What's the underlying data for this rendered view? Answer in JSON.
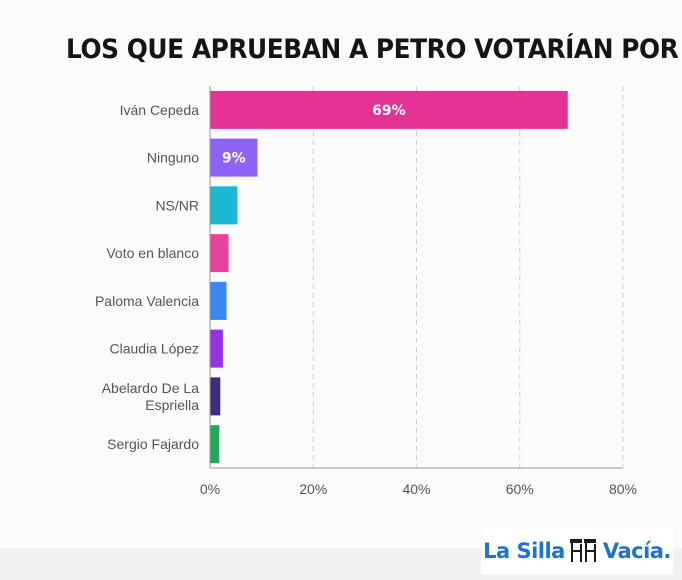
{
  "chart_data": {
    "type": "bar",
    "orientation": "horizontal",
    "title": "LOS QUE APRUEBAN A PETRO VOTARÍAN POR",
    "categories": [
      "Iván Cepeda",
      "Ninguno",
      "NS/NR",
      "Voto en blanco",
      "Paloma Valencia",
      "Claudia López",
      "Abelardo De La Espriella",
      "Sergio Fajardo"
    ],
    "category_lines": [
      [
        "Iván Cepeda"
      ],
      [
        "Ninguno"
      ],
      [
        "NS/NR"
      ],
      [
        "Voto en blanco"
      ],
      [
        "Paloma Valencia"
      ],
      [
        "Claudia López"
      ],
      [
        "Abelardo De La",
        "Espriella"
      ],
      [
        "Sergio Fajardo"
      ]
    ],
    "values": [
      69.3,
      9.2,
      5.3,
      3.6,
      3.2,
      2.5,
      2.0,
      1.8
    ],
    "data_labels": [
      "69%",
      "9%",
      "",
      "",
      "",
      "",
      "",
      ""
    ],
    "colors": [
      "#e33394",
      "#8f63f3",
      "#1ab8d2",
      "#e8439a",
      "#3a86f2",
      "#9333e6",
      "#3f2d7c",
      "#22a85a"
    ],
    "xlim": [
      0,
      80
    ],
    "x_ticks": [
      0,
      20,
      40,
      60,
      80
    ],
    "x_tick_labels": [
      "0%",
      "20%",
      "40%",
      "60%",
      "80%"
    ],
    "grid": "vertical dashed"
  },
  "branding": {
    "logo_left": "La Silla",
    "logo_right": "Vacía."
  }
}
